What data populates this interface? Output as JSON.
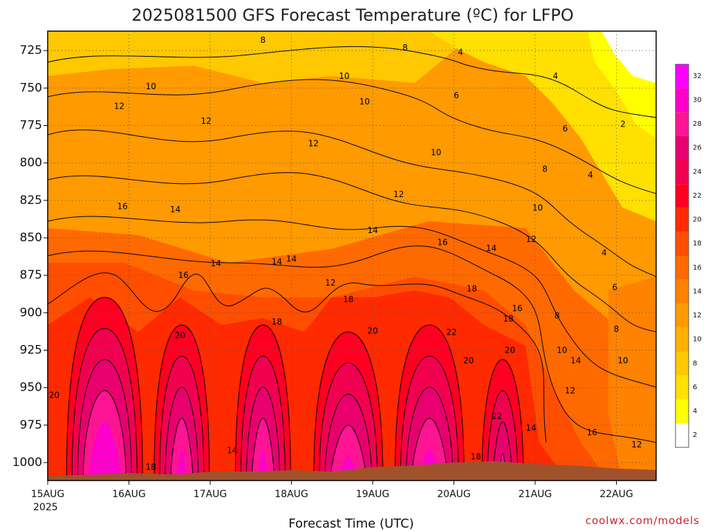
{
  "title": "2025081500 GFS Forecast Temperature (ºC) for LFPO",
  "credit": "coolwx.com/models",
  "colors": {
    "ground": "#a0522d",
    "contour": "#000000"
  },
  "chart_data": {
    "type": "heatmap",
    "title": "2025081500 GFS Forecast Temperature (ºC) for LFPO",
    "xlabel": "Forecast Time (UTC)",
    "ylabel": "",
    "x_tick_labels": [
      "15AUG",
      "16AUG",
      "17AUG",
      "18AUG",
      "19AUG",
      "20AUG",
      "21AUG",
      "22AUG"
    ],
    "x_year_label": "2025",
    "x_range_days": [
      0,
      7.5
    ],
    "y_tick_labels": [
      "725",
      "750",
      "775",
      "800",
      "825",
      "850",
      "875",
      "900",
      "925",
      "950",
      "975",
      "1000"
    ],
    "y_range_hpa": [
      712,
      1012
    ],
    "grid": true,
    "legend": "right colorbar",
    "colorbar": {
      "levels": [
        2,
        4,
        6,
        8,
        10,
        12,
        14,
        16,
        18,
        20,
        22,
        24,
        26,
        28,
        30,
        32
      ],
      "labels": [
        "2",
        "4",
        "6",
        "8",
        "10",
        "12",
        "14",
        "16",
        "18",
        "20",
        "22",
        "24",
        "26",
        "28",
        "30",
        "32"
      ],
      "colors": [
        "#ffffff",
        "#ffff00",
        "#ffe000",
        "#ffc800",
        "#ffb000",
        "#ff9a00",
        "#ff8200",
        "#ff6a00",
        "#ff4e00",
        "#ff2a00",
        "#ff0022",
        "#f20050",
        "#e8006e",
        "#ff1493",
        "#ff00cc",
        "#ff00ff"
      ]
    },
    "contour_labels": [
      {
        "text": "8",
        "day": 2.65,
        "p": 718
      },
      {
        "text": "8",
        "day": 4.4,
        "p": 723
      },
      {
        "text": "4",
        "day": 5.08,
        "p": 726
      },
      {
        "text": "4",
        "day": 6.25,
        "p": 742
      },
      {
        "text": "10",
        "day": 1.27,
        "p": 749
      },
      {
        "text": "10",
        "day": 3.65,
        "p": 742
      },
      {
        "text": "10",
        "day": 3.9,
        "p": 759
      },
      {
        "text": "6",
        "day": 5.03,
        "p": 755
      },
      {
        "text": "12",
        "day": 0.88,
        "p": 762
      },
      {
        "text": "12",
        "day": 1.95,
        "p": 772
      },
      {
        "text": "2",
        "day": 7.08,
        "p": 774
      },
      {
        "text": "6",
        "day": 6.37,
        "p": 777
      },
      {
        "text": "12",
        "day": 3.27,
        "p": 787
      },
      {
        "text": "10",
        "day": 4.78,
        "p": 793
      },
      {
        "text": "8",
        "day": 6.12,
        "p": 804
      },
      {
        "text": "4",
        "day": 6.68,
        "p": 808
      },
      {
        "text": "12",
        "day": 4.32,
        "p": 821
      },
      {
        "text": "16",
        "day": 0.92,
        "p": 829
      },
      {
        "text": "14",
        "day": 1.57,
        "p": 831
      },
      {
        "text": "10",
        "day": 6.03,
        "p": 830
      },
      {
        "text": "14",
        "day": 4.0,
        "p": 845
      },
      {
        "text": "12",
        "day": 5.95,
        "p": 851
      },
      {
        "text": "16",
        "day": 4.86,
        "p": 853
      },
      {
        "text": "14",
        "day": 5.46,
        "p": 857
      },
      {
        "text": "4",
        "day": 6.85,
        "p": 860
      },
      {
        "text": "14",
        "day": 2.07,
        "p": 867
      },
      {
        "text": "14",
        "day": 2.82,
        "p": 866
      },
      {
        "text": "14",
        "day": 3.0,
        "p": 864
      },
      {
        "text": "16",
        "day": 1.67,
        "p": 875
      },
      {
        "text": "12",
        "day": 3.48,
        "p": 880
      },
      {
        "text": "6",
        "day": 6.98,
        "p": 883
      },
      {
        "text": "18",
        "day": 5.22,
        "p": 884
      },
      {
        "text": "18",
        "day": 3.7,
        "p": 891
      },
      {
        "text": "16",
        "day": 5.78,
        "p": 897
      },
      {
        "text": "8",
        "day": 6.27,
        "p": 902
      },
      {
        "text": "18",
        "day": 5.67,
        "p": 904
      },
      {
        "text": "18",
        "day": 2.82,
        "p": 906
      },
      {
        "text": "8",
        "day": 7.0,
        "p": 911
      },
      {
        "text": "20",
        "day": 1.63,
        "p": 915
      },
      {
        "text": "20",
        "day": 4.0,
        "p": 912
      },
      {
        "text": "22",
        "day": 4.97,
        "p": 913
      },
      {
        "text": "20",
        "day": 5.69,
        "p": 925
      },
      {
        "text": "10",
        "day": 6.33,
        "p": 925
      },
      {
        "text": "20",
        "day": 5.18,
        "p": 932
      },
      {
        "text": "14",
        "day": 6.5,
        "p": 932
      },
      {
        "text": "10",
        "day": 7.08,
        "p": 932
      },
      {
        "text": "20",
        "day": 0.08,
        "p": 955
      },
      {
        "text": "12",
        "day": 6.43,
        "p": 952
      },
      {
        "text": "22",
        "day": 5.53,
        "p": 969
      },
      {
        "text": "14",
        "day": 5.95,
        "p": 977
      },
      {
        "text": "16",
        "day": 6.7,
        "p": 980
      },
      {
        "text": "12",
        "day": 7.25,
        "p": 988
      },
      {
        "text": "14",
        "day": 2.27,
        "p": 992
      },
      {
        "text": "18",
        "day": 5.27,
        "p": 996
      },
      {
        "text": "18",
        "day": 1.27,
        "p": 1003
      }
    ]
  }
}
